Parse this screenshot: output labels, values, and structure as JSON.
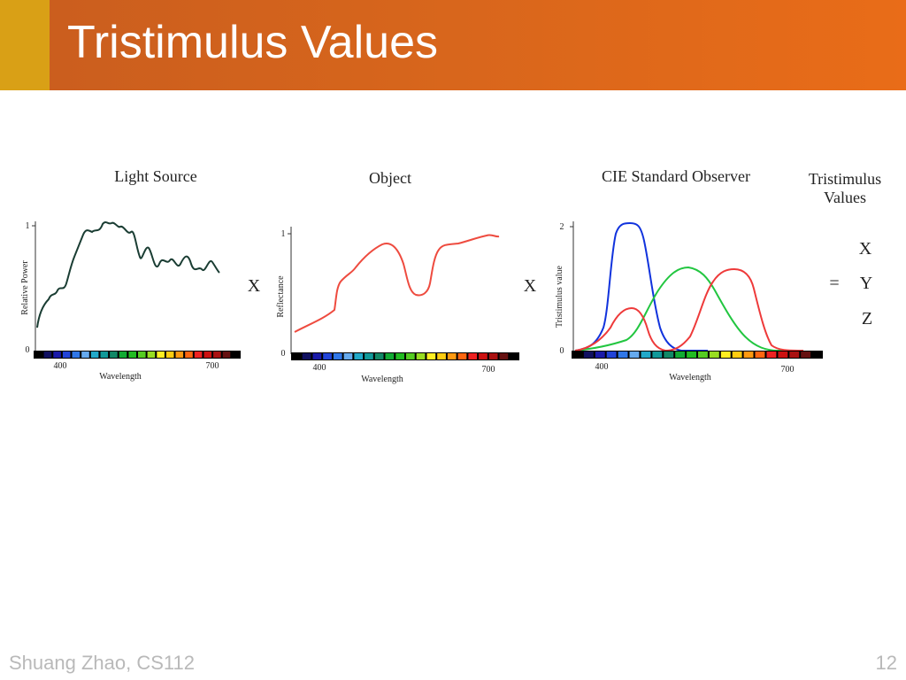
{
  "slide": {
    "title": "Tristimulus Values",
    "footer_left": "Shuang Zhao, CS112",
    "page_number": "12"
  },
  "figure": {
    "panels": [
      {
        "title": "Light Source",
        "ylabel": "Relative Power",
        "xlabel": "Wavelength",
        "x_ticks": [
          "400",
          "700"
        ],
        "y_ticks": [
          "0",
          "1"
        ]
      },
      {
        "title": "Object",
        "ylabel": "Reflectance",
        "xlabel": "Wavelength",
        "x_ticks": [
          "400",
          "700"
        ],
        "y_ticks": [
          "0",
          "1"
        ]
      },
      {
        "title": "CIE Standard Observer",
        "ylabel": "Tristimulus value",
        "xlabel": "Wavelength",
        "x_ticks": [
          "400",
          "700"
        ],
        "y_ticks": [
          "0",
          "2"
        ]
      }
    ],
    "operators": [
      "X",
      "X",
      "="
    ],
    "result_title_line1": "Tristimulus",
    "result_title_line2": "Values",
    "result_symbols": [
      "X",
      "Y",
      "Z"
    ],
    "colors": {
      "light_source_curve": "#1a3d33",
      "object_curve": "#ee4b3f",
      "cie_blue": "#1133dd",
      "cie_green": "#22c640",
      "cie_red": "#ee3a3a"
    },
    "spectrum_colors": [
      "#000000",
      "#101060",
      "#1a1aa8",
      "#2244d8",
      "#3077e8",
      "#66aaee",
      "#22a9c9",
      "#119999",
      "#118866",
      "#11aa33",
      "#22bb22",
      "#55cc22",
      "#99dd22",
      "#ffee22",
      "#ffcc11",
      "#ff9911",
      "#ff6611",
      "#ee2222",
      "#cc1111",
      "#aa1111",
      "#661111",
      "#000000"
    ]
  }
}
